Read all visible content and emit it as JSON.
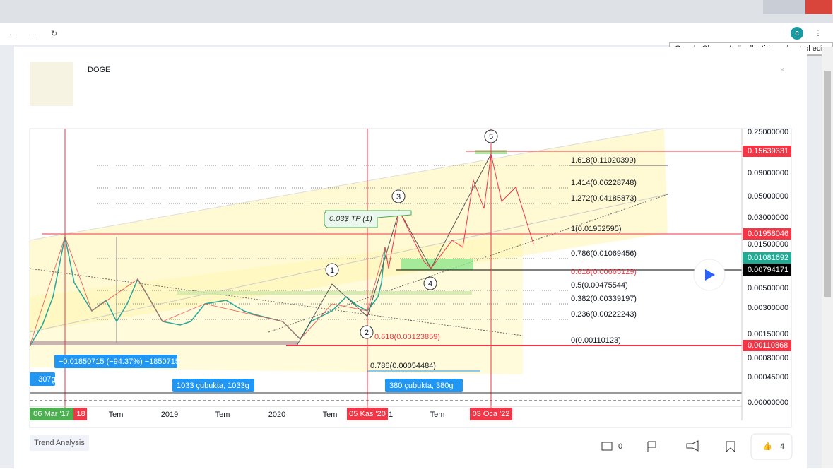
{
  "browser": {
    "tooltip": "Google Chrome'u özelleştirin ve kontrol edin",
    "profile": "c"
  },
  "idea": {
    "title": "DOGE",
    "tag": "Trend Analysis",
    "comments": "0",
    "likes": "4"
  },
  "chart": {
    "price_labels": [
      "0.25000000",
      "0.09000000",
      "0.05000000",
      "0.03000000",
      "0.01500000",
      "0.00500000",
      "0.00300000",
      "0.00150000",
      "0.00080000",
      "0.00045000",
      "0.00000000"
    ],
    "price_tags": [
      {
        "label": "0.15639331",
        "color": "#f23645"
      },
      {
        "label": "0.01958046",
        "color": "#f23645"
      },
      {
        "label": "0.01081692",
        "color": "#22ab94"
      },
      {
        "label": "0.00794171",
        "color": "#000000"
      },
      {
        "label": "0.00110868",
        "color": "#f23645"
      }
    ],
    "fib_labels": [
      "1.618(0.11020399)",
      "1.414(0.06228748)",
      "1.272(0.04185873)",
      "1(0.01952595)",
      "0.786(0.01069456)",
      "0.618(0.00665129)",
      "0.5(0.00475544)",
      "0.382(0.00339197)",
      "0.236(0.00222243)",
      "0(0.00110123)"
    ],
    "retrace_labels": [
      "0.618(0.00123859)",
      "0.786(0.00054484)"
    ],
    "waves": [
      "1",
      "2",
      "3",
      "4",
      "5"
    ],
    "note": "0.03$ TP (1)",
    "measures": [
      "−0.01850715 (−94.37%) −1850715",
      ", 307g",
      "1033 çubukta, 1033g",
      "380 çubukta, 380g"
    ],
    "time_labels": [
      "Tem",
      "2019",
      "Tem",
      "2020",
      "Tem",
      "1",
      "Tem"
    ],
    "time_tags": [
      {
        "label": "06 Mar '17",
        "color": "#4caf50"
      },
      {
        "label": "'18",
        "color": "#f23645"
      },
      {
        "label": "05 Kas '20",
        "color": "#f23645"
      },
      {
        "label": "03 Oca '22",
        "color": "#f23645"
      }
    ]
  }
}
